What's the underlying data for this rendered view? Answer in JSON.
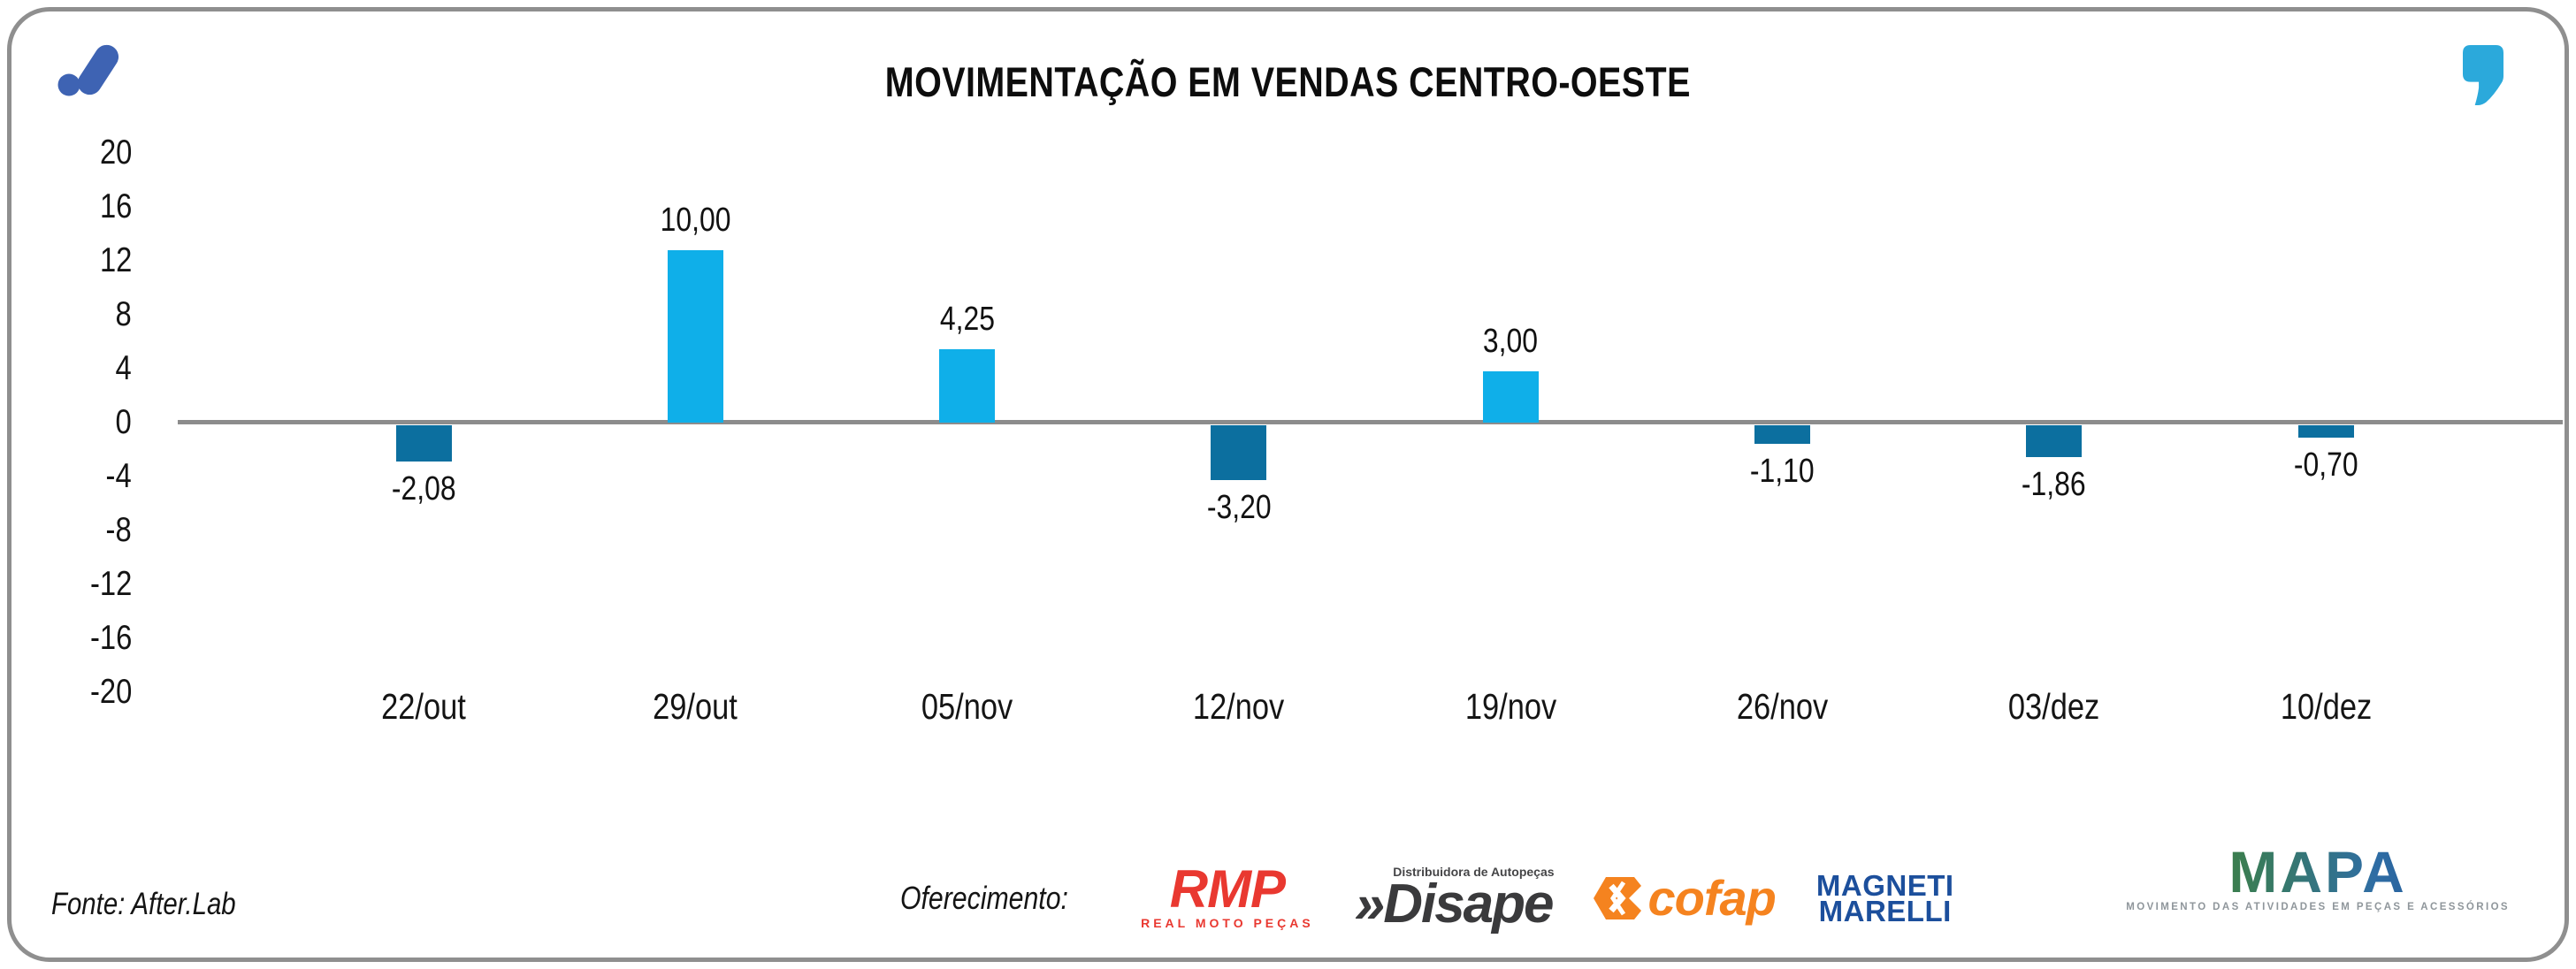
{
  "chart_data": {
    "type": "bar",
    "title": "MOVIMENTAÇÃO EM VENDAS CENTRO-OESTE",
    "categories": [
      "22/out",
      "29/out",
      "05/nov",
      "12/nov",
      "19/nov",
      "26/nov",
      "03/dez",
      "10/dez"
    ],
    "values": [
      -2.08,
      10.0,
      4.25,
      -3.2,
      3.0,
      -1.1,
      -1.86,
      -0.7
    ],
    "value_labels": [
      "-2,08",
      "10,00",
      "4,25",
      "-3,20",
      "3,00",
      "-1,10",
      "-1,86",
      "-0,70"
    ],
    "yticks": [
      20,
      16,
      12,
      8,
      4,
      0,
      -4,
      -8,
      -12,
      -16,
      -20
    ],
    "ylim": [
      -20,
      20
    ],
    "grid": false,
    "legend": "none",
    "positive_color": "#0fafe9",
    "negative_color": "#0c6f9f",
    "axis_line_color": "#8c8c8c"
  },
  "branding": {
    "afterlab_logo_color": "#3e63b3",
    "quote_icon_color": "#2ba9db"
  },
  "footer": {
    "source": "Fonte: After.Lab",
    "sponsor_label": "Oferecimento:",
    "sponsors": {
      "rmp": {
        "name": "RMP",
        "subtitle": "REAL MOTO PEÇAS",
        "color": "#e93830"
      },
      "disape": {
        "prefix": "»",
        "name": "Disape",
        "subtitle": "Distribuidora de Autopeças",
        "color": "#3a3a3c"
      },
      "cofap": {
        "name": "cofap",
        "color": "#f5831f"
      },
      "magneti_marelli": {
        "line1": "MAGNETI",
        "line2": "MARELLI",
        "color": "#1c4f9c"
      }
    },
    "mapa": {
      "name": "MAPA",
      "tagline": "MOVIMENTO DAS ATIVIDADES EM PEÇAS E ACESSÓRIOS"
    }
  }
}
